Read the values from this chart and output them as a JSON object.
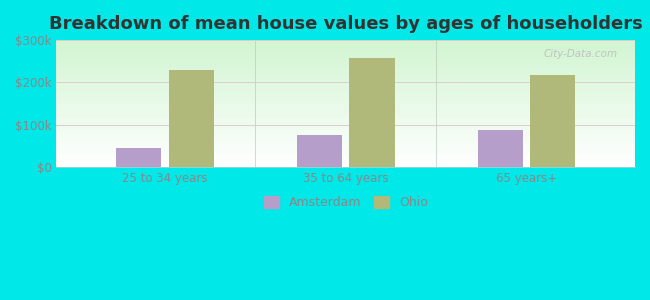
{
  "title": "Breakdown of mean house values by ages of householders",
  "categories": [
    "25 to 34 years",
    "35 to 64 years",
    "65 years+"
  ],
  "amsterdam_values": [
    45000,
    75000,
    88000
  ],
  "ohio_values": [
    230000,
    258000,
    218000
  ],
  "amsterdam_color": "#b59fca",
  "ohio_color": "#b0b87a",
  "ylim": [
    0,
    300000
  ],
  "yticks": [
    0,
    100000,
    200000,
    300000
  ],
  "ytick_labels": [
    "$0",
    "$100k",
    "$200k",
    "$300k"
  ],
  "outer_bg": "#00e8e8",
  "legend_amsterdam": "Amsterdam",
  "legend_ohio": "Ohio",
  "title_fontsize": 13,
  "bar_width": 0.25,
  "watermark": "City-Data.com"
}
